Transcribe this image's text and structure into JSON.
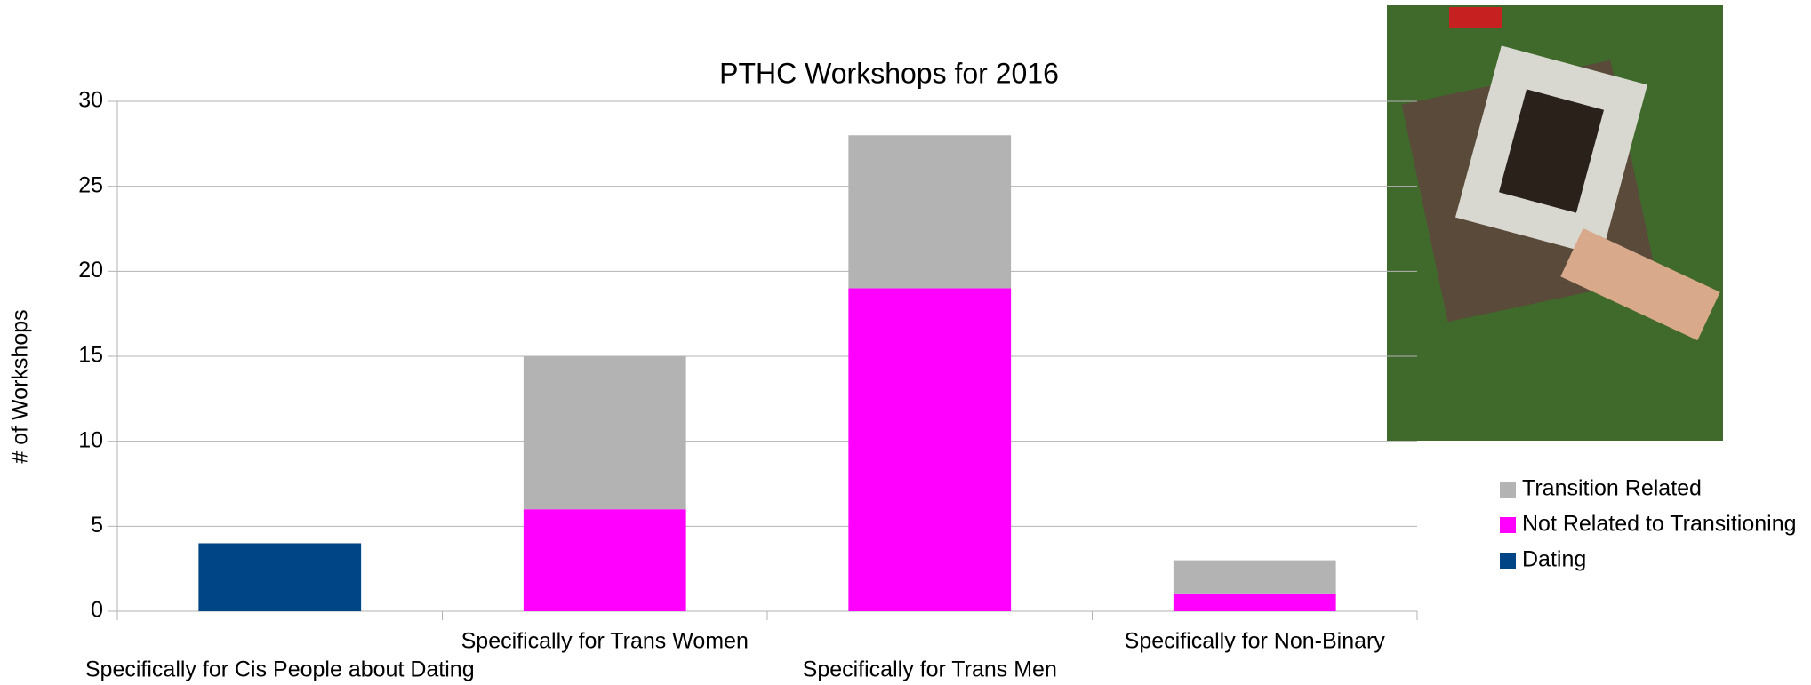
{
  "chart_data": {
    "type": "stacked_bar",
    "title": "PTHC Workshops for 2016",
    "y_label": "# of Workshops",
    "categories": [
      "Specifically for Cis People about Dating",
      "Specifically for Trans Women",
      "Specifically for Trans Men",
      "Specifically for Non-Binary"
    ],
    "series": [
      {
        "name": "Dating",
        "color": "#004586",
        "values": [
          4,
          0,
          0,
          0
        ]
      },
      {
        "name": "Not Related to Transitioning",
        "color": "#ff00ff",
        "values": [
          0,
          6,
          19,
          1
        ]
      },
      {
        "name": "Transition Related",
        "color": "#b3b3b3",
        "values": [
          0,
          9,
          9,
          2
        ]
      }
    ],
    "ylim": [
      0,
      30
    ],
    "yticks": [
      0,
      5,
      10,
      15,
      20,
      25,
      30
    ],
    "grid": true,
    "legend": "right"
  }
}
